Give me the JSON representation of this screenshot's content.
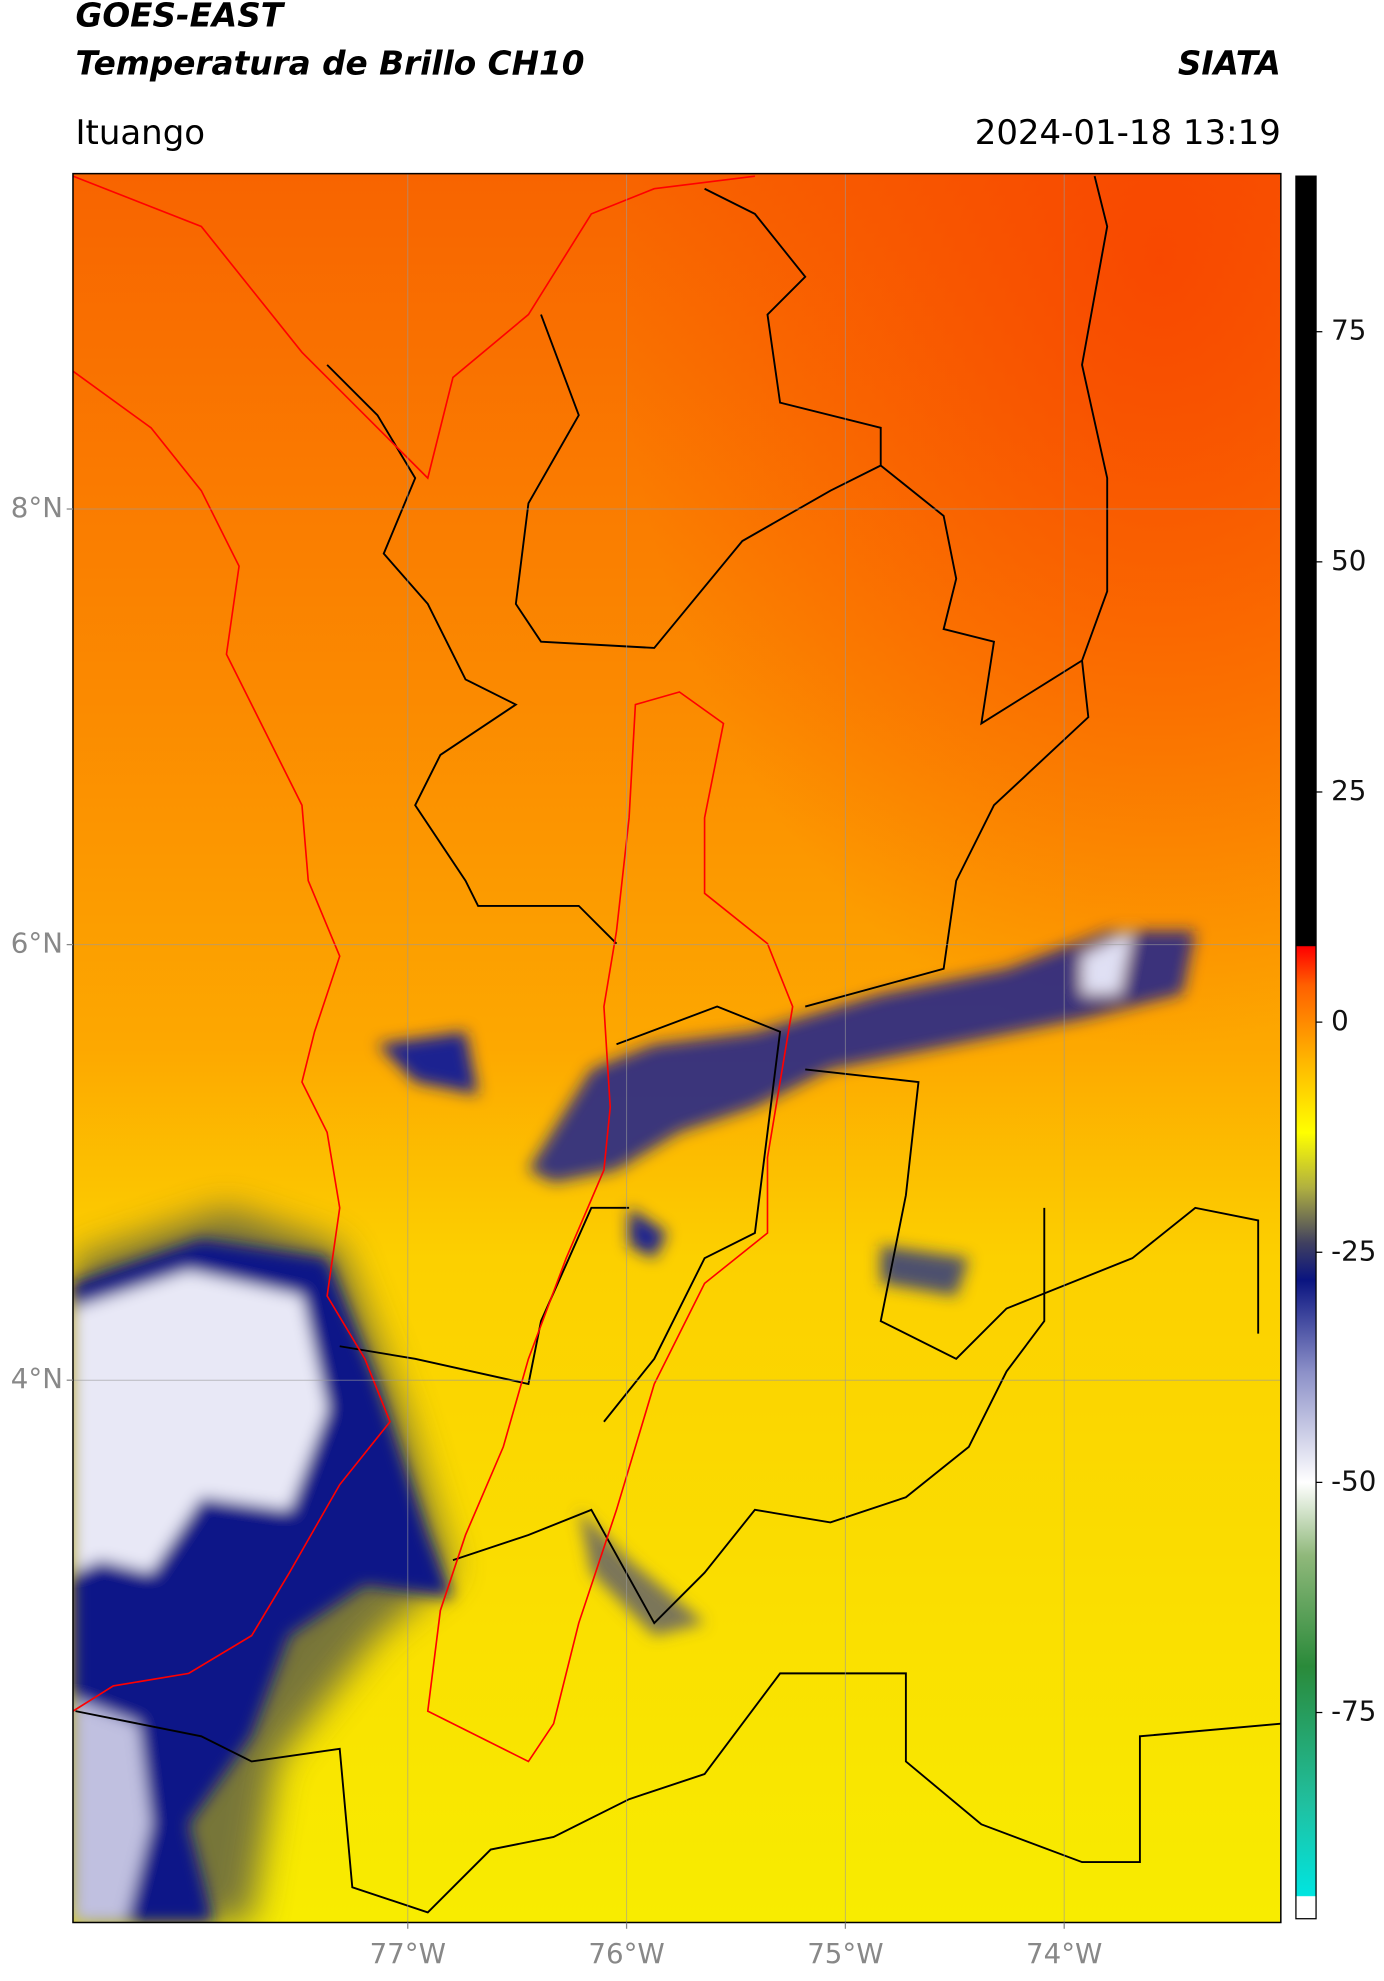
{
  "chart_data": {
    "type": "map",
    "title": "GOES-EAST",
    "subtitle": "Temperatura de Brillo CH10",
    "source": "SIATA",
    "region": "Ituango",
    "datetime": "2024-01-18 13:19",
    "xlim": [
      -78.53,
      -73.01
    ],
    "ylim": [
      1.51,
      9.54
    ],
    "xticks": [
      {
        "value": -77,
        "label": "77°W"
      },
      {
        "value": -76,
        "label": "76°W"
      },
      {
        "value": -75,
        "label": "75°W"
      },
      {
        "value": -74,
        "label": "74°W"
      }
    ],
    "yticks": [
      {
        "value": 8,
        "label": "8°N"
      },
      {
        "value": 6,
        "label": "6°N"
      },
      {
        "value": 4,
        "label": "4°N"
      }
    ],
    "grid": true,
    "colorbar": {
      "clim": [
        -97.4,
        91.9
      ],
      "ticks": [
        75,
        50,
        25,
        0,
        -25,
        -50,
        -75
      ],
      "colormap": [
        {
          "value": -97.4,
          "color": "#ffffff"
        },
        {
          "value": -95,
          "color": "#ffffff"
        },
        {
          "value": -94.9,
          "color": "#00e5e0"
        },
        {
          "value": -85,
          "color": "#20c0a0"
        },
        {
          "value": -70,
          "color": "#2a8a3a"
        },
        {
          "value": -58,
          "color": "#8fb87a"
        },
        {
          "value": -50,
          "color": "#ffffff"
        },
        {
          "value": -38,
          "color": "#8c90c8"
        },
        {
          "value": -28,
          "color": "#0a1480"
        },
        {
          "value": -24,
          "color": "#404060"
        },
        {
          "value": -18,
          "color": "#b0b040"
        },
        {
          "value": -12,
          "color": "#ffff00"
        },
        {
          "value": -4,
          "color": "#ffb400"
        },
        {
          "value": 4,
          "color": "#ff6000"
        },
        {
          "value": 8.2,
          "color": "#ff0000"
        },
        {
          "value": 8.3,
          "color": "#000000"
        },
        {
          "value": 91.9,
          "color": "#000000"
        }
      ]
    }
  }
}
